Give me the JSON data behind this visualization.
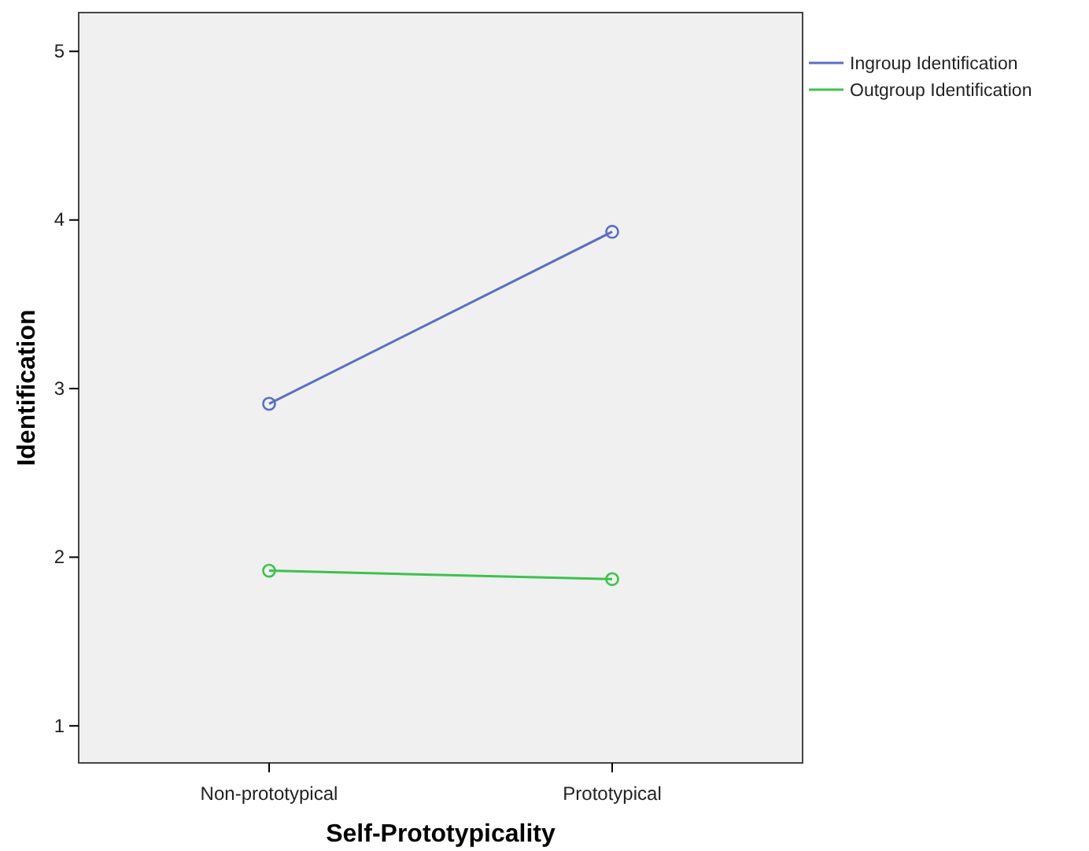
{
  "chart_data": {
    "type": "line",
    "xlabel": "Self-Prototypicality",
    "ylabel": "Identification",
    "categories": [
      "Non-prototypical",
      "Prototypical"
    ],
    "series": [
      {
        "name": "Ingroup Identification",
        "color": "#5a6ec4",
        "values": [
          2.91,
          3.93
        ]
      },
      {
        "name": "Outgroup Identification",
        "color": "#3cc34b",
        "values": [
          1.92,
          1.87
        ]
      }
    ],
    "ylim": [
      0.78,
      5.23
    ],
    "yticks": [
      1,
      2,
      3,
      4,
      5
    ],
    "grid": false,
    "legend": "top right",
    "marker": "circle",
    "line_style": "solid"
  }
}
